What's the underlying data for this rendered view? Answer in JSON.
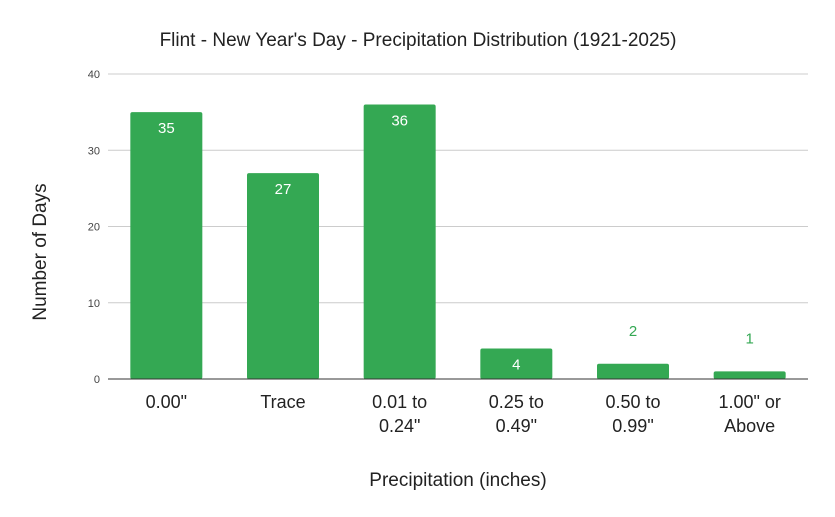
{
  "chart_data": {
    "type": "bar",
    "title": "Flint - New Year's Day - Precipitation Distribution (1921-2025)",
    "xlabel": "Precipitation (inches)",
    "ylabel": "Number of Days",
    "categories": [
      [
        "0.00\""
      ],
      [
        "Trace"
      ],
      [
        "0.01 to",
        "0.24\""
      ],
      [
        "0.25 to",
        "0.49\""
      ],
      [
        "0.50 to",
        "0.99\""
      ],
      [
        "1.00\" or",
        "Above"
      ]
    ],
    "values": [
      35,
      27,
      36,
      4,
      2,
      1
    ],
    "ylim": [
      0,
      40
    ],
    "yticks": [
      0,
      10,
      20,
      30,
      40
    ],
    "grid": true,
    "legend": "none",
    "bar_color": "#34a853",
    "label_inside_color": "#ffffff",
    "label_outside_color": "#34a853"
  }
}
